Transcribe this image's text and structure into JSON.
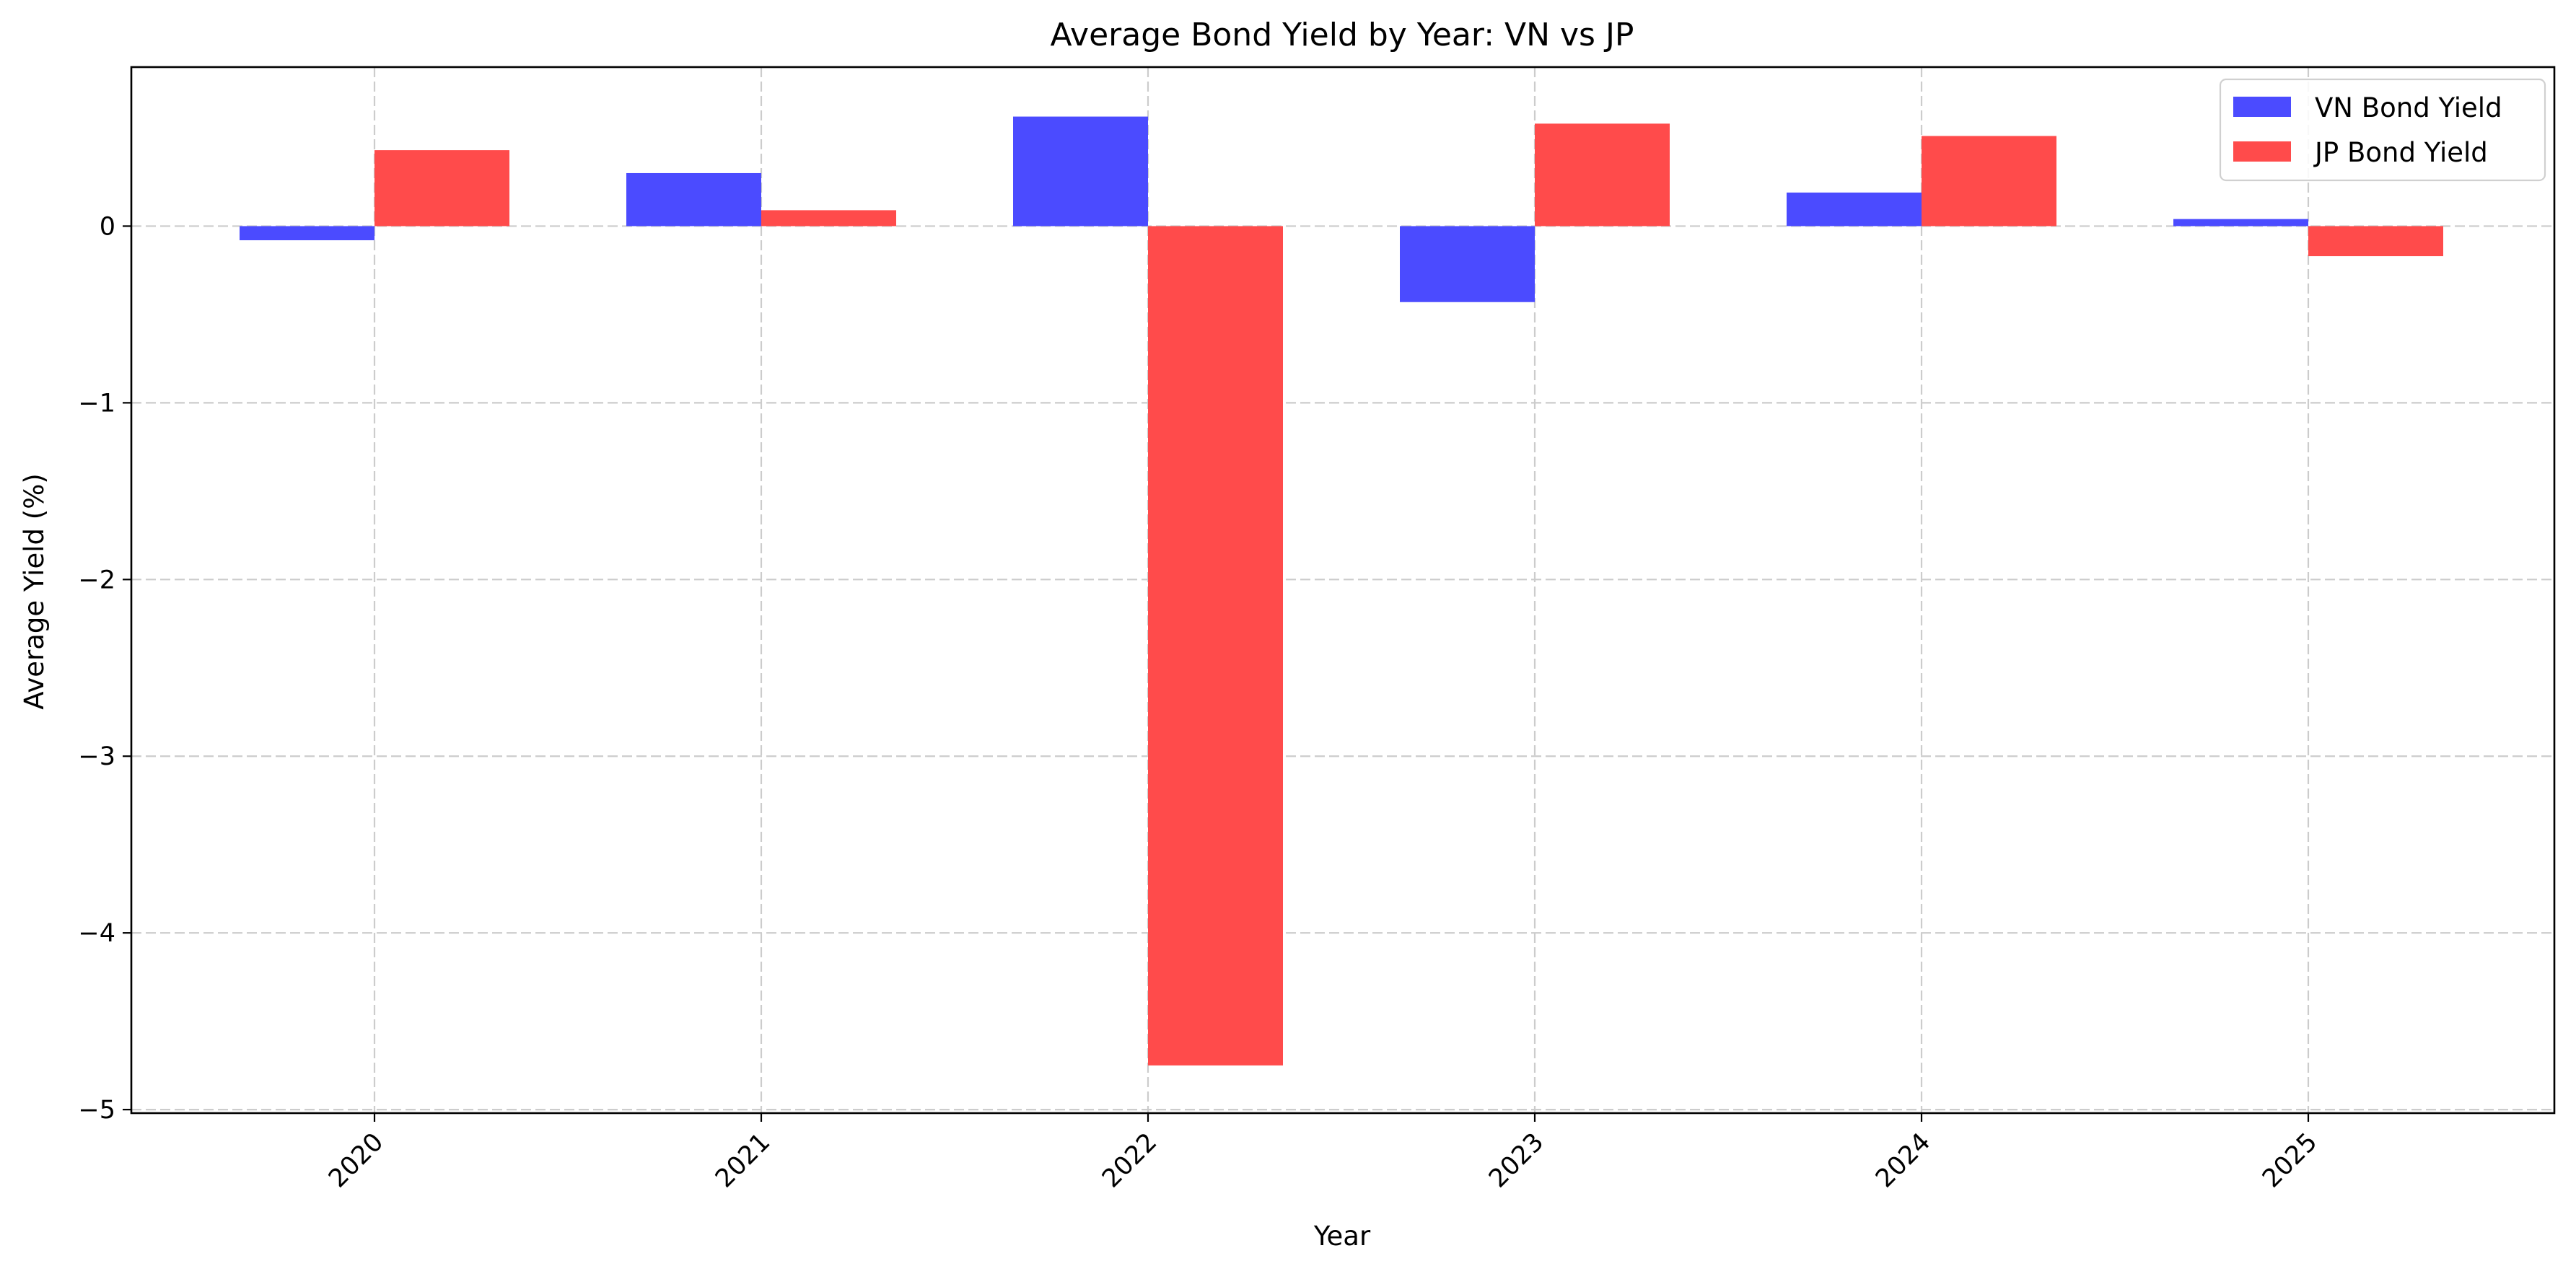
{
  "chart_data": {
    "type": "bar",
    "title": "Average Bond Yield by Year: VN vs JP",
    "xlabel": "Year",
    "ylabel": "Average Yield (%)",
    "categories": [
      "2020",
      "2021",
      "2022",
      "2023",
      "2024",
      "2025"
    ],
    "series": [
      {
        "name": "VN Bond Yield",
        "color": "#4b4bff",
        "values": [
          -0.08,
          0.3,
          0.62,
          -0.43,
          0.19,
          0.04
        ]
      },
      {
        "name": "JP Bond Yield",
        "color": "#ff4b4b",
        "values": [
          0.43,
          0.09,
          -4.75,
          0.58,
          0.51,
          -0.17
        ]
      }
    ],
    "ylim": [
      -5.02,
      0.9
    ],
    "yticks": [
      0,
      -1,
      -2,
      -3,
      -4,
      -5
    ],
    "ytick_labels": [
      "0",
      "−1",
      "−2",
      "−3",
      "−4",
      "−5"
    ],
    "grid": true,
    "legend_position": "top-right"
  }
}
